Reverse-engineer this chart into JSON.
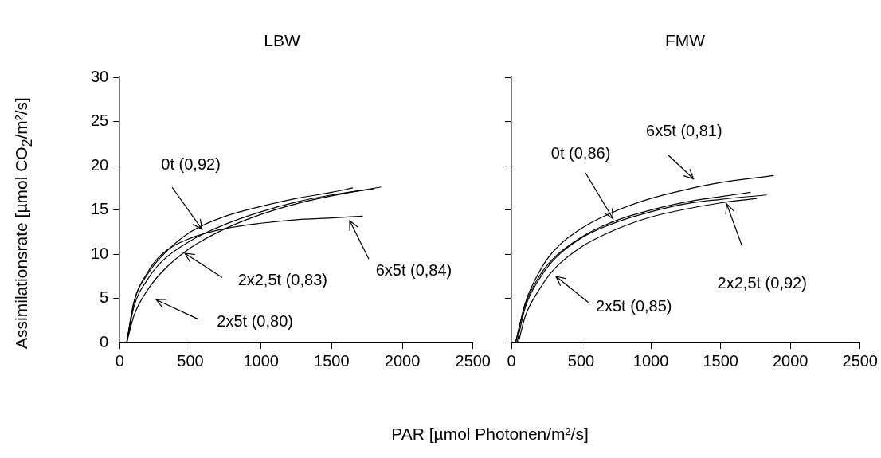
{
  "chart_data": [
    {
      "type": "line",
      "title": "LBW",
      "ylabel": "Assimilationsrate [µmol CO$_{2}$/m²/s]",
      "xlabel": "PAR  [µmol Photonen/m²/s]",
      "xlim": [
        0,
        2500
      ],
      "xticks": [
        0,
        500,
        1000,
        1500,
        2000,
        2500
      ],
      "ylim": [
        0,
        30
      ],
      "yticks": [
        0,
        5,
        10,
        15,
        20,
        25,
        30
      ],
      "grid": false,
      "legend": false,
      "series": [
        {
          "color": "#000000",
          "x": [
            50,
            100,
            200,
            300,
            500,
            750,
            1000,
            1250,
            1500,
            1650
          ],
          "values": [
            0,
            4.5,
            7.8,
            9.8,
            12.5,
            14.3,
            15.4,
            16.3,
            17.0,
            17.5
          ]
        },
        {
          "color": "#000000",
          "x": [
            50,
            100,
            200,
            300,
            500,
            750,
            1000,
            1250,
            1500,
            1720
          ],
          "values": [
            0,
            4.5,
            8,
            10,
            11.8,
            12.9,
            13.5,
            13.9,
            14.1,
            14.3
          ]
        },
        {
          "color": "#000000",
          "x": [
            50,
            100,
            200,
            300,
            500,
            750,
            1000,
            1250,
            1500,
            1800
          ],
          "values": [
            0,
            4,
            7.2,
            9.2,
            11.5,
            13.4,
            14.8,
            15.9,
            16.7,
            17.4
          ]
        },
        {
          "color": "#000000",
          "x": [
            50,
            100,
            200,
            300,
            500,
            750,
            1000,
            1250,
            1500,
            1850
          ],
          "values": [
            0,
            3,
            6,
            8,
            10.7,
            12.9,
            14.5,
            15.7,
            16.6,
            17.6
          ]
        }
      ],
      "annotations": [
        {
          "text": "0t (0,92)",
          "x": 580,
          "y": 12.8
        },
        "6x5t (0,84)",
        {
          "text": "2x2,5t (0,83)",
          "x": 460,
          "y": 10.1
        },
        "2x5t (0,80)"
      ]
    },
    {
      "type": "line",
      "title": "FMW",
      "tick_labels": "x",
      "xlim": [
        0,
        2500
      ],
      "xticks": [
        0,
        500,
        1000,
        1500,
        2000,
        2500
      ],
      "ylim": [
        0,
        30
      ],
      "yticks": [
        0,
        5,
        10,
        15,
        20,
        25,
        30
      ],
      "grid": false,
      "legend": false,
      "series": [
        {
          "color": "#000000",
          "x": [
            30,
            100,
            200,
            300,
            500,
            750,
            1000,
            1250,
            1500,
            1880
          ],
          "values": [
            0,
            4.5,
            8,
            10.3,
            12.9,
            14.9,
            16.3,
            17.3,
            18.1,
            18.9
          ]
        },
        {
          "color": "#000000",
          "x": [
            30,
            100,
            200,
            300,
            500,
            750,
            1000,
            1250,
            1500,
            1715
          ],
          "values": [
            0,
            4.3,
            7.5,
            9.5,
            11.9,
            13.8,
            15,
            15.9,
            16.5,
            17
          ]
        },
        {
          "color": "#000000",
          "x": [
            40,
            100,
            200,
            300,
            500,
            750,
            1000,
            1250,
            1500,
            1830
          ],
          "values": [
            0,
            4,
            7.2,
            9.3,
            11.8,
            13.6,
            14.8,
            15.7,
            16.2,
            16.7
          ]
        },
        {
          "color": "#000000",
          "x": [
            50,
            100,
            200,
            300,
            500,
            750,
            1000,
            1250,
            1500,
            1760
          ],
          "values": [
            0,
            3,
            6,
            8.2,
            10.8,
            12.8,
            14.2,
            15.1,
            15.8,
            16.3
          ]
        }
      ],
      "annotations": [
        {
          "text": "0t (0,86)",
          "x": 730,
          "y": 14.0
        },
        "6x5t (0,81)",
        "2x2,5t (0,92)",
        "2x5t (0,85)"
      ]
    }
  ]
}
